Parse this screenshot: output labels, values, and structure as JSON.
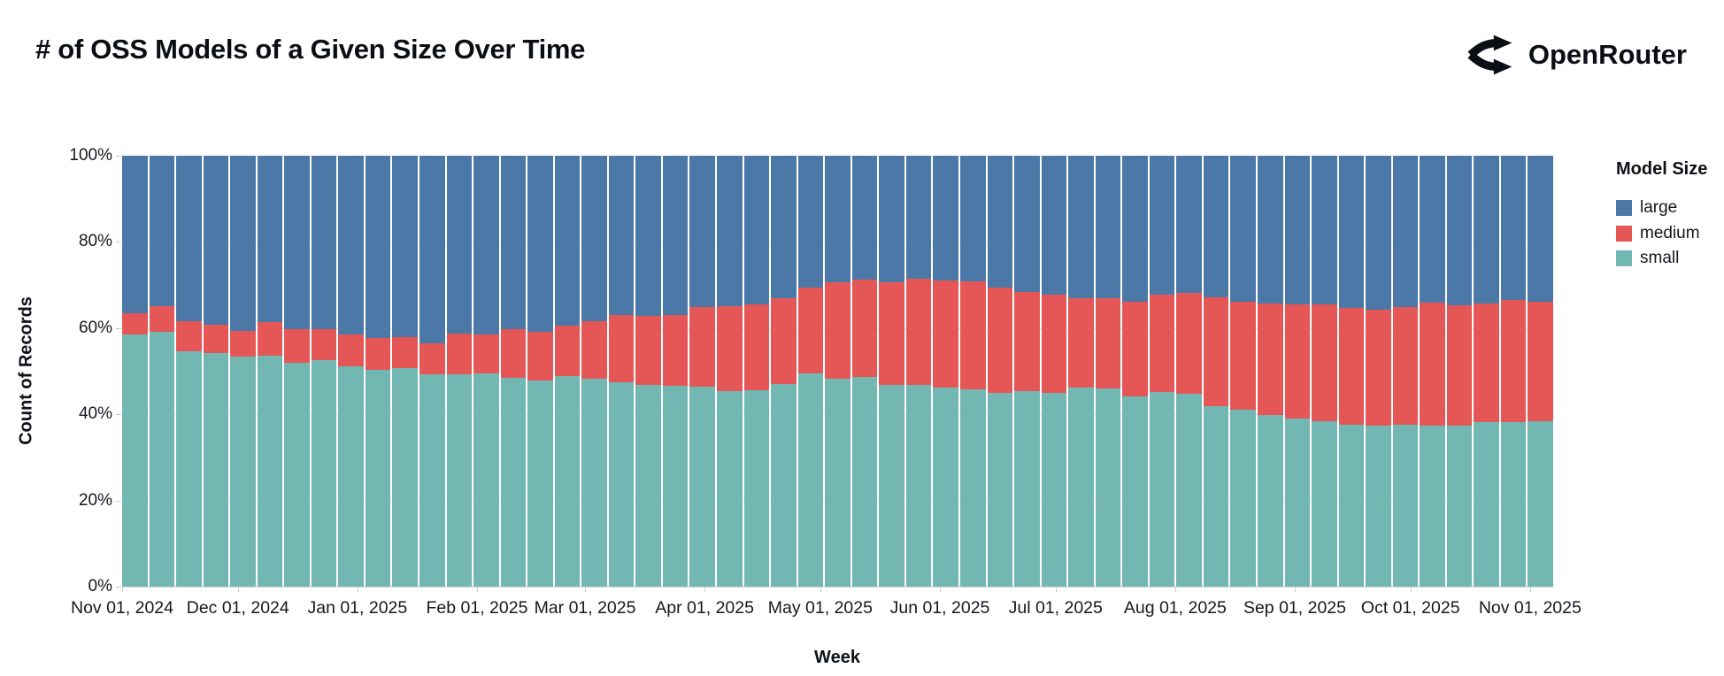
{
  "title": "# of OSS Models of a Given Size Over Time",
  "brand": {
    "name": "OpenRouter",
    "icon": "openrouter-split-arrows-icon"
  },
  "chart_data": {
    "type": "bar",
    "stacked": true,
    "normalized_percent": true,
    "title": "# of OSS Models of a Given Size Over Time",
    "xlabel": "Week",
    "ylabel": "Count of Records",
    "ylim": [
      0,
      100
    ],
    "y_tick_labels": [
      "0%",
      "20%",
      "40%",
      "60%",
      "80%",
      "100%"
    ],
    "x_tick_labels": [
      "Nov 01, 2024",
      "Dec 01, 2024",
      "Jan 01, 2025",
      "Feb 01, 2025",
      "Mar 01, 2025",
      "Apr 01, 2025",
      "May 01, 2025",
      "Jun 01, 2025",
      "Jul 01, 2025",
      "Aug 01, 2025",
      "Sep 01, 2025",
      "Oct 01, 2025",
      "Nov 01, 2025"
    ],
    "grid": true,
    "legend": {
      "title": "Model Size",
      "position": "right",
      "entries": [
        {
          "label": "large",
          "color": "#4c78a8"
        },
        {
          "label": "medium",
          "color": "#e45756"
        },
        {
          "label": "small",
          "color": "#72b7b2"
        }
      ]
    },
    "weeks": [
      "Nov 01, 2024",
      "Nov 08, 2024",
      "Nov 15, 2024",
      "Nov 22, 2024",
      "Nov 29, 2024",
      "Dec 06, 2024",
      "Dec 13, 2024",
      "Dec 20, 2024",
      "Dec 27, 2024",
      "Jan 03, 2025",
      "Jan 10, 2025",
      "Jan 17, 2025",
      "Jan 24, 2025",
      "Jan 31, 2025",
      "Feb 07, 2025",
      "Feb 14, 2025",
      "Feb 21, 2025",
      "Feb 28, 2025",
      "Mar 07, 2025",
      "Mar 14, 2025",
      "Mar 21, 2025",
      "Mar 28, 2025",
      "Apr 04, 2025",
      "Apr 11, 2025",
      "Apr 18, 2025",
      "Apr 25, 2025",
      "May 02, 2025",
      "May 09, 2025",
      "May 16, 2025",
      "May 23, 2025",
      "May 30, 2025",
      "Jun 06, 2025",
      "Jun 13, 2025",
      "Jun 20, 2025",
      "Jun 27, 2025",
      "Jul 04, 2025",
      "Jul 11, 2025",
      "Jul 18, 2025",
      "Jul 25, 2025",
      "Aug 01, 2025",
      "Aug 08, 2025",
      "Aug 15, 2025",
      "Aug 22, 2025",
      "Aug 29, 2025",
      "Sep 05, 2025",
      "Sep 12, 2025",
      "Sep 19, 2025",
      "Sep 26, 2025",
      "Oct 03, 2025",
      "Oct 10, 2025",
      "Oct 17, 2025",
      "Oct 24, 2025",
      "Oct 31, 2025"
    ],
    "series": [
      {
        "name": "small",
        "color": "#72b7b2",
        "values": [
          58.6,
          59.1,
          54.7,
          54.2,
          53.3,
          53.6,
          51.9,
          52.6,
          51.2,
          50.4,
          50.7,
          49.2,
          49.2,
          49.4,
          48.5,
          47.9,
          48.8,
          48.2,
          47.4,
          46.8,
          46.6,
          46.5,
          45.4,
          45.6,
          47.1,
          49.5,
          48.3,
          48.7,
          46.8,
          46.9,
          46.3,
          45.7,
          45.0,
          45.4,
          44.9,
          46.1,
          45.9,
          44.2,
          45.1,
          44.7,
          41.8,
          41.0,
          39.8,
          39.0,
          38.4,
          37.5,
          37.4,
          37.5,
          37.4,
          37.4,
          38.2,
          38.2,
          38.4
        ]
      },
      {
        "name": "medium",
        "color": "#e45756",
        "values": [
          4.9,
          5.9,
          6.9,
          6.6,
          6.1,
          7.7,
          7.9,
          7.2,
          7.4,
          7.4,
          7.3,
          7.3,
          9.5,
          9.2,
          11.2,
          11.3,
          11.8,
          13.4,
          15.6,
          16.0,
          16.4,
          18.4,
          19.7,
          19.9,
          19.9,
          20.0,
          22.3,
          22.5,
          23.8,
          24.5,
          24.8,
          25.2,
          24.4,
          22.9,
          22.9,
          20.8,
          21.1,
          21.9,
          22.6,
          23.4,
          25.3,
          25.2,
          25.9,
          26.5,
          27.1,
          27.2,
          26.8,
          27.4,
          28.5,
          27.9,
          27.5,
          28.4,
          27.8
        ]
      },
      {
        "name": "large",
        "color": "#4c78a8",
        "values": [
          36.5,
          35.0,
          38.4,
          39.2,
          40.6,
          38.7,
          40.2,
          40.2,
          41.4,
          42.2,
          42.0,
          43.5,
          41.3,
          41.4,
          40.3,
          40.8,
          39.4,
          38.4,
          37.0,
          37.2,
          37.0,
          35.1,
          34.9,
          34.5,
          33.0,
          30.5,
          29.4,
          28.8,
          29.4,
          28.6,
          28.9,
          29.1,
          30.6,
          31.7,
          32.2,
          33.1,
          33.0,
          33.9,
          32.3,
          31.9,
          32.9,
          33.8,
          34.3,
          34.5,
          34.5,
          35.3,
          35.8,
          35.1,
          34.1,
          34.7,
          34.3,
          33.4,
          33.8
        ]
      }
    ]
  }
}
